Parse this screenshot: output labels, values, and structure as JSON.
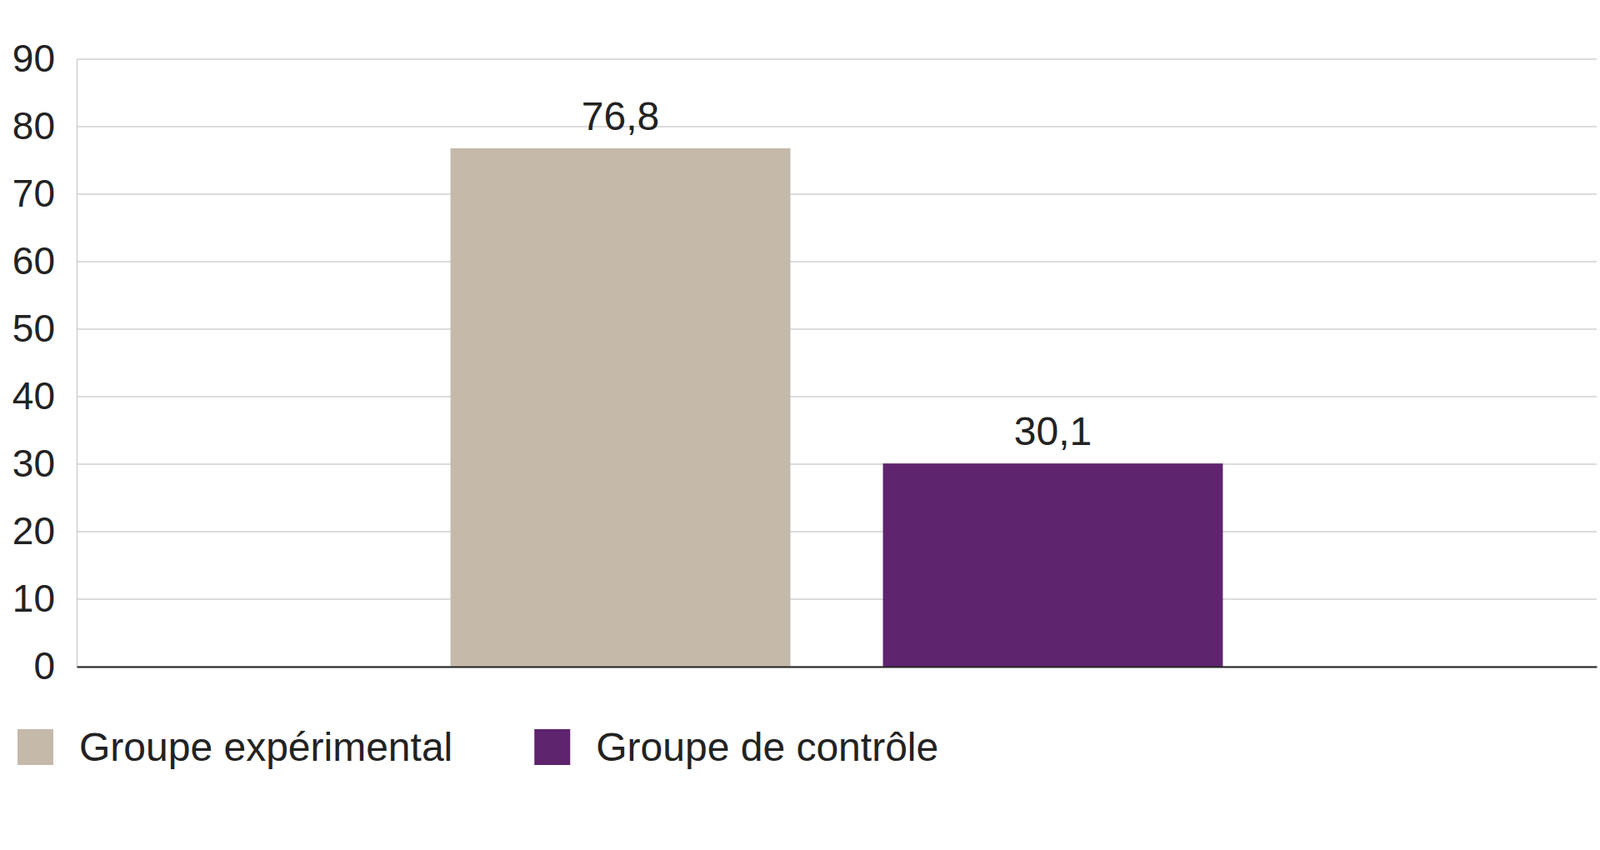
{
  "chart_data": {
    "type": "bar",
    "categories": [
      null
    ],
    "series": [
      {
        "name": "Groupe expérimental",
        "color": "#c5b9aa",
        "values": [
          76.8
        ],
        "value_labels": [
          "76,8"
        ]
      },
      {
        "name": "Groupe de contrôle",
        "color": "#5e246e",
        "values": [
          30.1
        ],
        "value_labels": [
          "30,1"
        ]
      }
    ],
    "ylim": [
      0,
      90
    ],
    "yticks": [
      0,
      10,
      20,
      30,
      40,
      50,
      60,
      70,
      80,
      90
    ],
    "grid": true,
    "data_labels": true,
    "legend": "bottom"
  }
}
